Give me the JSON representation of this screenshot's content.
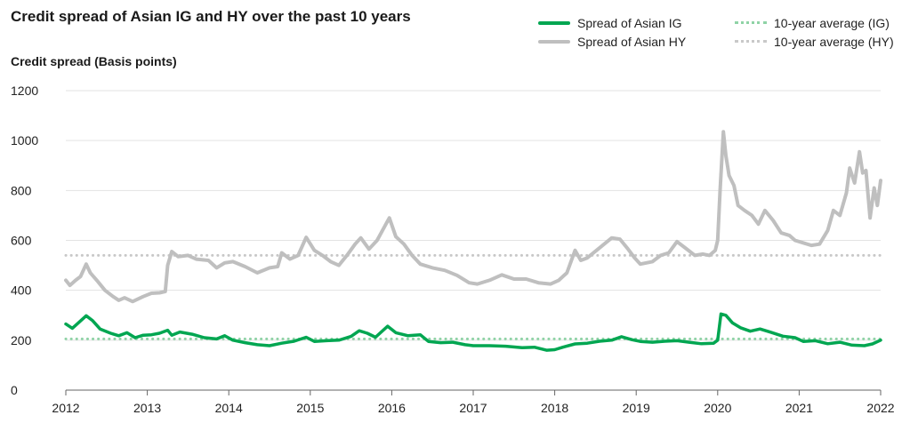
{
  "chart_data": {
    "type": "line",
    "title": "Credit spread of Asian IG and HY over the past 10 years",
    "ylabel": "Credit spread (Basis points)",
    "xlabel": "",
    "ylim": [
      0,
      1200
    ],
    "xlim": [
      2012,
      2022
    ],
    "yticks": [
      0,
      200,
      400,
      600,
      800,
      1000,
      1200
    ],
    "xticks": [
      2012,
      2013,
      2014,
      2015,
      2016,
      2017,
      2018,
      2019,
      2020,
      2021,
      2022
    ],
    "grid": "horizontal",
    "legend_position": "top-right",
    "series": [
      {
        "name": "Spread of Asian IG",
        "color": "#00a651",
        "style": "solid",
        "points": [
          [
            2012.0,
            265
          ],
          [
            2012.08,
            248
          ],
          [
            2012.15,
            268
          ],
          [
            2012.25,
            298
          ],
          [
            2012.33,
            278
          ],
          [
            2012.42,
            245
          ],
          [
            2012.55,
            228
          ],
          [
            2012.65,
            218
          ],
          [
            2012.75,
            230
          ],
          [
            2012.85,
            210
          ],
          [
            2012.95,
            220
          ],
          [
            2013.05,
            222
          ],
          [
            2013.15,
            228
          ],
          [
            2013.25,
            240
          ],
          [
            2013.3,
            220
          ],
          [
            2013.4,
            233
          ],
          [
            2013.55,
            224
          ],
          [
            2013.7,
            210
          ],
          [
            2013.85,
            205
          ],
          [
            2013.95,
            218
          ],
          [
            2014.05,
            200
          ],
          [
            2014.2,
            190
          ],
          [
            2014.35,
            182
          ],
          [
            2014.5,
            178
          ],
          [
            2014.65,
            188
          ],
          [
            2014.8,
            196
          ],
          [
            2014.95,
            212
          ],
          [
            2015.05,
            195
          ],
          [
            2015.2,
            198
          ],
          [
            2015.35,
            200
          ],
          [
            2015.5,
            215
          ],
          [
            2015.6,
            238
          ],
          [
            2015.7,
            228
          ],
          [
            2015.8,
            212
          ],
          [
            2015.95,
            256
          ],
          [
            2016.05,
            230
          ],
          [
            2016.2,
            218
          ],
          [
            2016.35,
            222
          ],
          [
            2016.45,
            195
          ],
          [
            2016.6,
            190
          ],
          [
            2016.75,
            192
          ],
          [
            2016.9,
            182
          ],
          [
            2017.0,
            178
          ],
          [
            2017.2,
            178
          ],
          [
            2017.4,
            176
          ],
          [
            2017.6,
            170
          ],
          [
            2017.75,
            172
          ],
          [
            2017.9,
            160
          ],
          [
            2018.0,
            162
          ],
          [
            2018.1,
            172
          ],
          [
            2018.25,
            185
          ],
          [
            2018.4,
            188
          ],
          [
            2018.55,
            196
          ],
          [
            2018.7,
            200
          ],
          [
            2018.82,
            214
          ],
          [
            2018.95,
            202
          ],
          [
            2019.05,
            195
          ],
          [
            2019.2,
            192
          ],
          [
            2019.35,
            196
          ],
          [
            2019.5,
            198
          ],
          [
            2019.65,
            192
          ],
          [
            2019.8,
            186
          ],
          [
            2019.95,
            188
          ],
          [
            2020.0,
            200
          ],
          [
            2020.04,
            305
          ],
          [
            2020.1,
            300
          ],
          [
            2020.18,
            270
          ],
          [
            2020.28,
            250
          ],
          [
            2020.4,
            236
          ],
          [
            2020.52,
            245
          ],
          [
            2020.65,
            232
          ],
          [
            2020.8,
            216
          ],
          [
            2020.95,
            210
          ],
          [
            2021.05,
            195
          ],
          [
            2021.2,
            198
          ],
          [
            2021.35,
            186
          ],
          [
            2021.5,
            192
          ],
          [
            2021.65,
            180
          ],
          [
            2021.8,
            178
          ],
          [
            2021.9,
            185
          ],
          [
            2022.0,
            200
          ]
        ]
      },
      {
        "name": "Spread of Asian HY",
        "color": "#bfbfbf",
        "style": "solid",
        "points": [
          [
            2012.0,
            440
          ],
          [
            2012.05,
            420
          ],
          [
            2012.12,
            440
          ],
          [
            2012.18,
            455
          ],
          [
            2012.25,
            505
          ],
          [
            2012.3,
            470
          ],
          [
            2012.38,
            440
          ],
          [
            2012.48,
            400
          ],
          [
            2012.58,
            375
          ],
          [
            2012.65,
            360
          ],
          [
            2012.72,
            370
          ],
          [
            2012.82,
            355
          ],
          [
            2012.95,
            375
          ],
          [
            2013.05,
            388
          ],
          [
            2013.15,
            390
          ],
          [
            2013.22,
            395
          ],
          [
            2013.25,
            500
          ],
          [
            2013.3,
            555
          ],
          [
            2013.38,
            535
          ],
          [
            2013.5,
            540
          ],
          [
            2013.6,
            525
          ],
          [
            2013.75,
            520
          ],
          [
            2013.85,
            490
          ],
          [
            2013.95,
            510
          ],
          [
            2014.05,
            515
          ],
          [
            2014.2,
            495
          ],
          [
            2014.35,
            470
          ],
          [
            2014.5,
            490
          ],
          [
            2014.6,
            495
          ],
          [
            2014.65,
            550
          ],
          [
            2014.75,
            525
          ],
          [
            2014.85,
            540
          ],
          [
            2014.95,
            612
          ],
          [
            2015.05,
            560
          ],
          [
            2015.15,
            540
          ],
          [
            2015.25,
            515
          ],
          [
            2015.35,
            500
          ],
          [
            2015.45,
            540
          ],
          [
            2015.55,
            585
          ],
          [
            2015.62,
            610
          ],
          [
            2015.72,
            565
          ],
          [
            2015.82,
            600
          ],
          [
            2015.92,
            660
          ],
          [
            2015.97,
            690
          ],
          [
            2016.05,
            615
          ],
          [
            2016.15,
            585
          ],
          [
            2016.25,
            540
          ],
          [
            2016.35,
            505
          ],
          [
            2016.5,
            490
          ],
          [
            2016.65,
            480
          ],
          [
            2016.8,
            460
          ],
          [
            2016.95,
            430
          ],
          [
            2017.05,
            425
          ],
          [
            2017.2,
            440
          ],
          [
            2017.35,
            462
          ],
          [
            2017.5,
            445
          ],
          [
            2017.65,
            445
          ],
          [
            2017.8,
            430
          ],
          [
            2017.95,
            425
          ],
          [
            2018.05,
            440
          ],
          [
            2018.15,
            470
          ],
          [
            2018.25,
            560
          ],
          [
            2018.32,
            520
          ],
          [
            2018.4,
            530
          ],
          [
            2018.55,
            570
          ],
          [
            2018.7,
            610
          ],
          [
            2018.8,
            605
          ],
          [
            2018.9,
            565
          ],
          [
            2018.98,
            530
          ],
          [
            2019.05,
            505
          ],
          [
            2019.2,
            515
          ],
          [
            2019.3,
            540
          ],
          [
            2019.4,
            550
          ],
          [
            2019.5,
            595
          ],
          [
            2019.6,
            570
          ],
          [
            2019.72,
            540
          ],
          [
            2019.82,
            545
          ],
          [
            2019.9,
            540
          ],
          [
            2019.97,
            560
          ],
          [
            2020.0,
            600
          ],
          [
            2020.03,
            800
          ],
          [
            2020.07,
            1035
          ],
          [
            2020.1,
            940
          ],
          [
            2020.14,
            860
          ],
          [
            2020.2,
            820
          ],
          [
            2020.25,
            740
          ],
          [
            2020.33,
            720
          ],
          [
            2020.42,
            700
          ],
          [
            2020.5,
            665
          ],
          [
            2020.58,
            720
          ],
          [
            2020.68,
            680
          ],
          [
            2020.78,
            630
          ],
          [
            2020.88,
            620
          ],
          [
            2020.95,
            600
          ],
          [
            2021.05,
            590
          ],
          [
            2021.15,
            580
          ],
          [
            2021.25,
            585
          ],
          [
            2021.35,
            640
          ],
          [
            2021.42,
            720
          ],
          [
            2021.5,
            700
          ],
          [
            2021.58,
            790
          ],
          [
            2021.62,
            890
          ],
          [
            2021.68,
            830
          ],
          [
            2021.74,
            955
          ],
          [
            2021.78,
            870
          ],
          [
            2021.82,
            880
          ],
          [
            2021.87,
            690
          ],
          [
            2021.92,
            810
          ],
          [
            2021.96,
            740
          ],
          [
            2022.0,
            840
          ]
        ]
      },
      {
        "name": "10-year average (IG)",
        "color": "#8fd3a6",
        "style": "dotted",
        "points": [
          [
            2012,
            205
          ],
          [
            2022,
            205
          ]
        ]
      },
      {
        "name": "10-year average (HY)",
        "color": "#c8c8c8",
        "style": "dotted",
        "points": [
          [
            2012,
            540
          ],
          [
            2022,
            540
          ]
        ]
      }
    ]
  }
}
